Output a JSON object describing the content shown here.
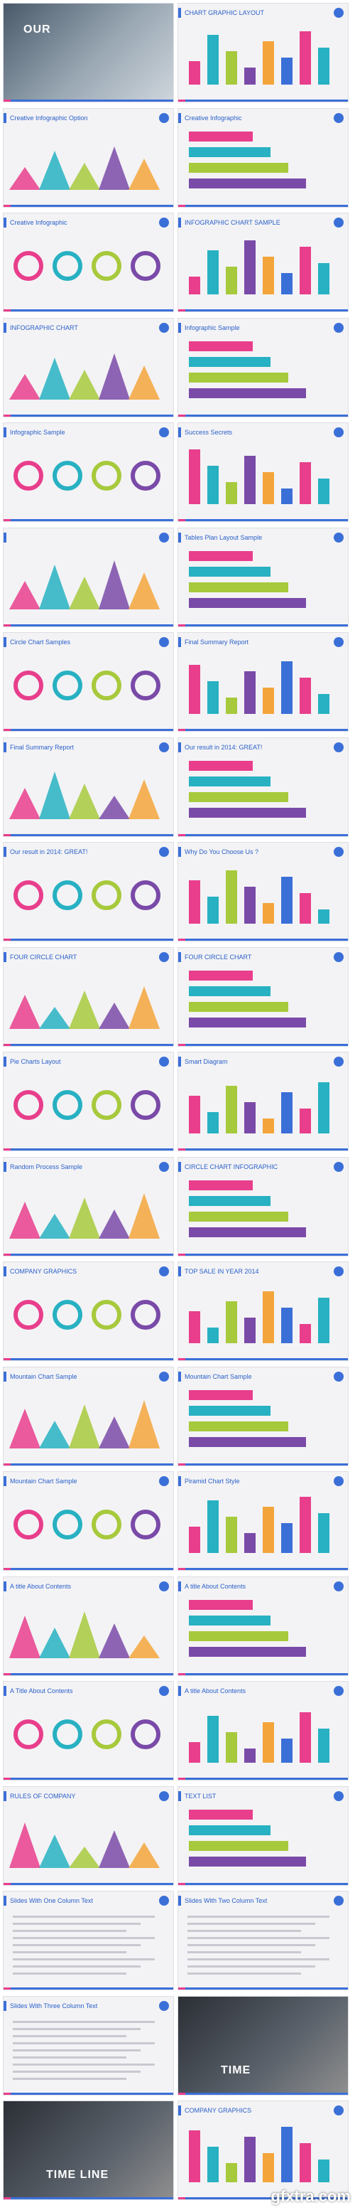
{
  "slides": [
    {
      "title": "OUR",
      "kind": "photo"
    },
    {
      "title": "CHART GRAPHIC LAYOUT",
      "kind": "chart"
    },
    {
      "title": "Creative Infographic Option",
      "kind": "chart"
    },
    {
      "title": "Creative Infographic",
      "kind": "chart"
    },
    {
      "title": "Creative Infographic",
      "kind": "chart"
    },
    {
      "title": "INFOGRAPHIC CHART SAMPLE",
      "kind": "chart"
    },
    {
      "title": "INFOGRAPHIC CHART",
      "kind": "chart"
    },
    {
      "title": "Infographic Sample",
      "kind": "chart"
    },
    {
      "title": "Infographic Sample",
      "kind": "chart"
    },
    {
      "title": "Success Secrets",
      "kind": "chart"
    },
    {
      "title": "",
      "kind": "chart"
    },
    {
      "title": "Tables Plan Layout Sample",
      "kind": "chart"
    },
    {
      "title": "Circle Chart Samples",
      "kind": "chart"
    },
    {
      "title": "Final Summary Report",
      "kind": "chart"
    },
    {
      "title": "Final Summary Report",
      "kind": "chart"
    },
    {
      "title": "Our result in 2014: GREAT!",
      "kind": "chart"
    },
    {
      "title": "Our result in 2014: GREAT!",
      "kind": "chart"
    },
    {
      "title": "Why Do You Choose Us ?",
      "kind": "chart"
    },
    {
      "title": "FOUR CIRCLE CHART",
      "kind": "chart"
    },
    {
      "title": "FOUR CIRCLE CHART",
      "kind": "chart"
    },
    {
      "title": "Pie Charts Layout",
      "kind": "chart"
    },
    {
      "title": "Smart Diagram",
      "kind": "chart"
    },
    {
      "title": "Random Process Sample",
      "kind": "chart"
    },
    {
      "title": "CIRCLE CHART INFOGRAPHIC",
      "kind": "chart"
    },
    {
      "title": "COMPANY GRAPHICS",
      "kind": "chart"
    },
    {
      "title": "TOP SALE IN YEAR 2014",
      "kind": "chart"
    },
    {
      "title": "Mountain Chart Sample",
      "kind": "chart"
    },
    {
      "title": "Mountain Chart Sample",
      "kind": "chart"
    },
    {
      "title": "Mountain Chart Sample",
      "kind": "chart"
    },
    {
      "title": "Piramid Chart Style",
      "kind": "chart"
    },
    {
      "title": "A title About Contents",
      "kind": "chart"
    },
    {
      "title": "A title About Contents",
      "kind": "chart"
    },
    {
      "title": "A Title About Contents",
      "kind": "chart"
    },
    {
      "title": "A title About Contents",
      "kind": "chart"
    },
    {
      "title": "RULES OF COMPANY",
      "kind": "chart"
    },
    {
      "title": "TEXT LIST",
      "kind": "chart"
    },
    {
      "title": "Slides With One Column Text",
      "kind": "text"
    },
    {
      "title": "Slides With Two Column Text",
      "kind": "text"
    },
    {
      "title": "Slides With Three Column Text",
      "kind": "text"
    },
    {
      "title": "TIME",
      "kind": "dark"
    },
    {
      "title": "TIME LINE",
      "kind": "dark"
    },
    {
      "title": "COMPANY GRAPHICS",
      "kind": "chart"
    }
  ],
  "watermark": "gfxtra.com",
  "colors": {
    "accent_blue": "#3b6fd8",
    "accent_pink": "#e83e8c",
    "teal": "#27b1c2",
    "green": "#a7c93c",
    "purple": "#7a4aa8",
    "orange": "#f3a53b"
  }
}
